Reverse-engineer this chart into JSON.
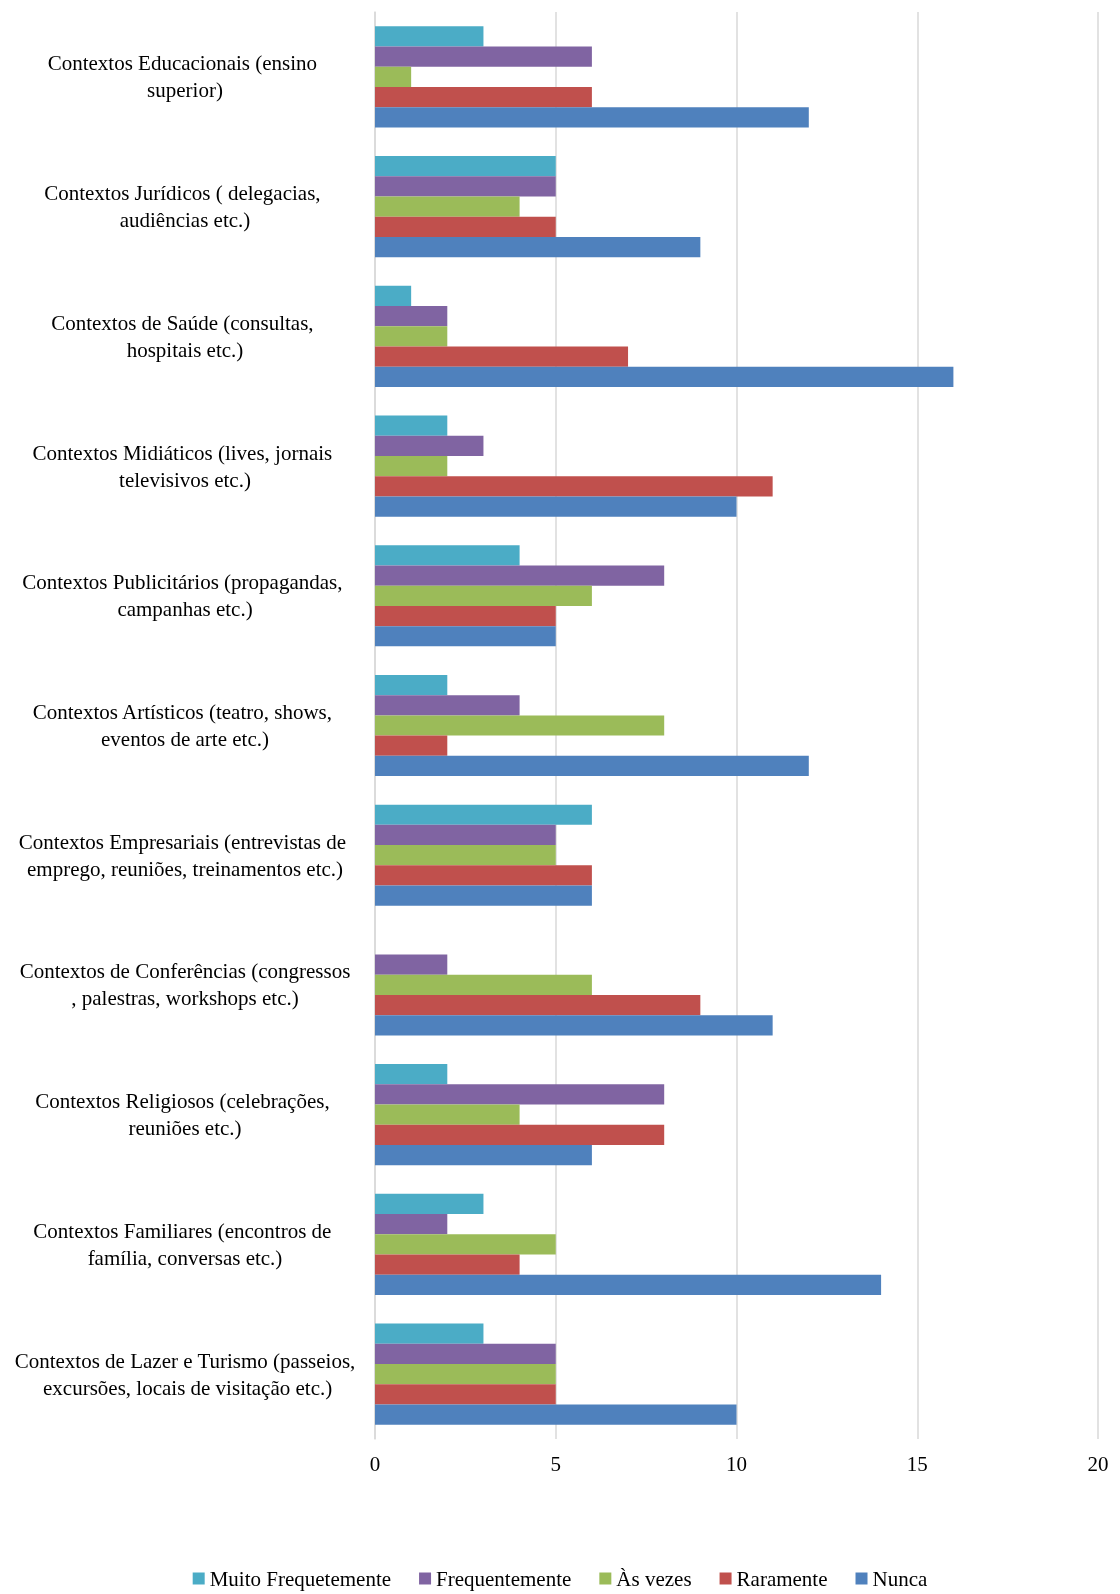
{
  "chart_data": {
    "type": "bar",
    "orientation": "horizontal",
    "categories": [
      "Contextos Educacionais (ensino superior)",
      "Contextos Jurídicos ( delegacias, audiências etc.)",
      "Contextos de Saúde (consultas, hospitais etc.)",
      "Contextos Midiáticos (lives, jornais televisivos etc.)",
      "Contextos Publicitários (propagandas, campanhas etc.)",
      "Contextos Artísticos (teatro, shows, eventos de arte etc.)",
      "Contextos Empresariais (entrevistas de emprego, reuniões, treinamentos etc.)",
      "Contextos de Conferências (congressos, palestras, workshops etc.)",
      "Contextos Religiosos (celebrações, reuniões etc.)",
      "Contextos Familiares (encontros de família, conversas etc.)",
      "Contextos de Lazer e Turismo (passeios, excursões, locais de visitação etc.)"
    ],
    "series": [
      {
        "name": "Muito Frequetemente",
        "color": "#4bacc6",
        "values": [
          3,
          5,
          1,
          2,
          4,
          2,
          6,
          0,
          2,
          3,
          3
        ]
      },
      {
        "name": "Frequentemente",
        "color": "#8064a2",
        "values": [
          6,
          5,
          2,
          3,
          8,
          4,
          5,
          2,
          8,
          2,
          5
        ]
      },
      {
        "name": "Às vezes",
        "color": "#9bbb59",
        "values": [
          1,
          4,
          2,
          2,
          6,
          8,
          5,
          6,
          4,
          5,
          5
        ]
      },
      {
        "name": "Raramente",
        "color": "#c0504d",
        "values": [
          6,
          5,
          7,
          11,
          5,
          2,
          6,
          9,
          8,
          4,
          5
        ]
      },
      {
        "name": "Nunca",
        "color": "#4f81bd",
        "values": [
          12,
          9,
          16,
          10,
          5,
          12,
          6,
          11,
          6,
          14,
          10
        ]
      }
    ],
    "xlim": [
      0,
      20
    ],
    "xticks": [
      0,
      5,
      10,
      15,
      20
    ],
    "grid": "x",
    "legend": "bottom"
  }
}
